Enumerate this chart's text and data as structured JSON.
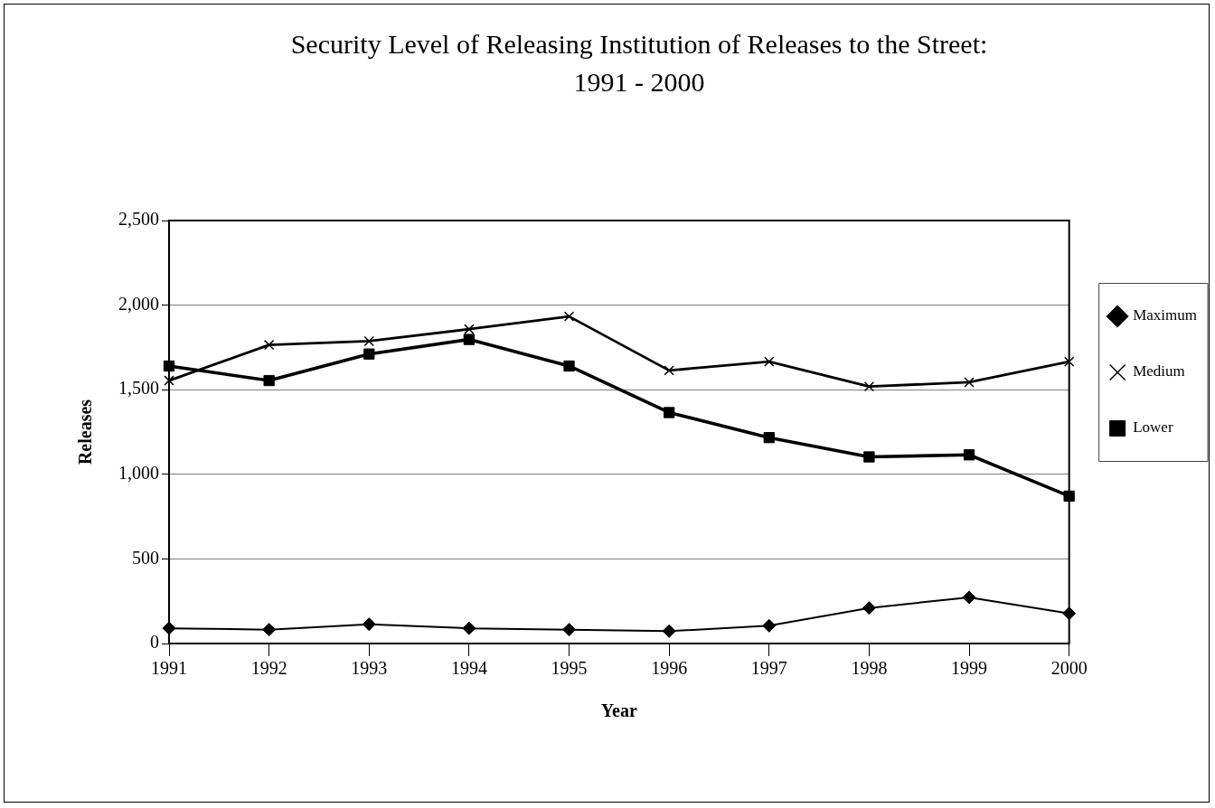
{
  "chart_data": {
    "type": "line",
    "title": "Security Level of Releasing Institution of Releases to the Street:\n1991 - 2000",
    "xlabel": "Year",
    "ylabel": "Releases",
    "categories": [
      "1991",
      "1992",
      "1993",
      "1994",
      "1995",
      "1996",
      "1997",
      "1998",
      "1999",
      "2000"
    ],
    "series": [
      {
        "name": "Maximum",
        "color": "#000000",
        "marker": "diamond",
        "values": [
          90,
          82,
          114,
          90,
          82,
          73,
          105,
          210,
          273,
          178
        ]
      },
      {
        "name": "Medium",
        "color": "#000000",
        "marker": "cross",
        "values": [
          1554,
          1765,
          1787,
          1858,
          1933,
          1614,
          1666,
          1519,
          1544,
          1666
        ]
      },
      {
        "name": "Lower",
        "color": "#000000",
        "marker": "square",
        "values": [
          1640,
          1554,
          1711,
          1797,
          1640,
          1365,
          1217,
          1103,
          1115,
          871
        ]
      }
    ],
    "ylim": [
      0,
      2500
    ],
    "yticks": [
      0,
      {
        "value": 500,
        "label": "500"
      },
      {
        "value": 1000,
        "label": "1,000"
      },
      {
        "value": 1500,
        "label": "1,500"
      },
      {
        "value": 2000,
        "label": "2,000"
      },
      {
        "value": 2500,
        "label": "2,500"
      }
    ],
    "grid": "y",
    "legend": "right",
    "line_style": "solid"
  }
}
